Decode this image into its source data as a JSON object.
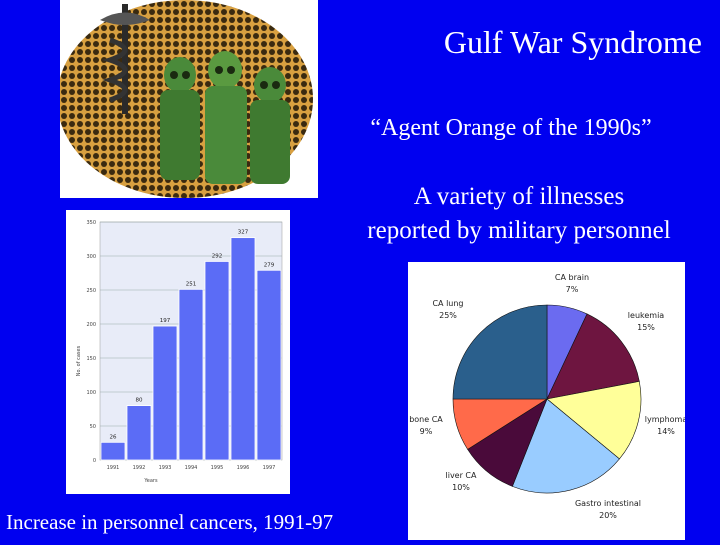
{
  "slide": {
    "title": "Gulf War Syndrome",
    "quote": "“Agent Orange of the 1990s”",
    "subtitle_line1": "A variety of illnesses",
    "subtitle_line2": "reported by military personnel",
    "caption": "Increase in personnel cancers, 1991-97",
    "background_color": "#0000f0"
  },
  "photo": {
    "description_icons": [
      "caduceus-icon",
      "soldiers-in-gas-masks"
    ]
  },
  "chart_data": [
    {
      "type": "bar",
      "categories": [
        "1991",
        "1992",
        "1993",
        "1994",
        "1995",
        "1996",
        "1997"
      ],
      "values": [
        26,
        80,
        197,
        251,
        292,
        327,
        279
      ],
      "ylim": [
        0,
        350
      ],
      "yticks": [
        0,
        50,
        100,
        150,
        200,
        250,
        300,
        350
      ],
      "xlabel": "Years",
      "ylabel": "No. of cases",
      "grid": true,
      "bar_color": "#5b6cf6"
    },
    {
      "type": "pie",
      "slices": [
        {
          "name": "CA brain",
          "value": 7,
          "label": "7%",
          "color": "#6b6bf0"
        },
        {
          "name": "leukemia",
          "value": 15,
          "label": "15%",
          "color": "#6e1540"
        },
        {
          "name": "lymphoma",
          "value": 14,
          "label": "14%",
          "color": "#ffff99"
        },
        {
          "name": "Gastro intestinal",
          "value": 20,
          "label": "20%",
          "color": "#99ccff"
        },
        {
          "name": "liver CA",
          "value": 10,
          "label": "10%",
          "color": "#4a0a3a"
        },
        {
          "name": "bone CA",
          "value": 9,
          "label": "9%",
          "color": "#ff6a4a"
        },
        {
          "name": "CA lung",
          "value": 25,
          "label": "25%",
          "color": "#2a5f8c"
        }
      ]
    }
  ]
}
